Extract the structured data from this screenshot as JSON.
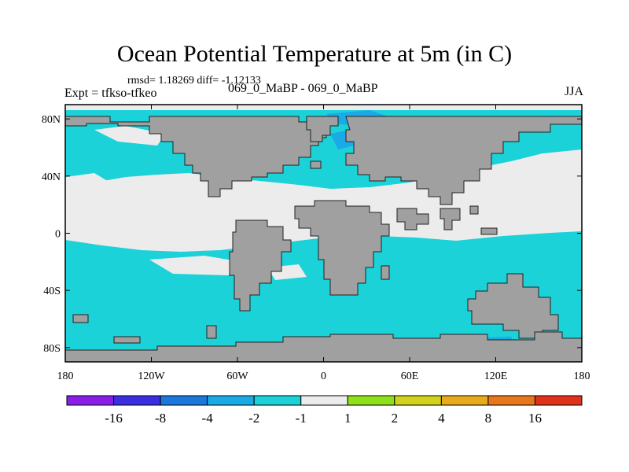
{
  "title": "Ocean Potential Temperature at 5m (in C)",
  "stats_line": "rmsd= 1.18269  diff= -1.12133",
  "left_label": "Expt = tfkso-tfkeo",
  "center_label": "069_0_MaBP - 069_0_MaBP",
  "right_label": "JJA",
  "x_ticks": [
    "180",
    "120W",
    "60W",
    "0",
    "60E",
    "120E",
    "180"
  ],
  "y_ticks": [
    "80N",
    "40N",
    "0",
    "40S",
    "80S"
  ],
  "colorbar": {
    "colors": [
      "#8a1ee8",
      "#3a2ee0",
      "#1a78dc",
      "#1aaae6",
      "#1ad2d8",
      "#ececec",
      "#8ee01a",
      "#d2d21a",
      "#e8aa1a",
      "#e8761a",
      "#e0321a"
    ],
    "labels": [
      "-16",
      "-8",
      "-4",
      "-2",
      "-1",
      "1",
      "2",
      "4",
      "8",
      "16"
    ]
  },
  "map_colors": {
    "land": "#a0a0a0",
    "ocean_cool": "#1ad2d8",
    "ocean_neutral": "#ececec",
    "ocean_cold": "#1aaae6"
  }
}
